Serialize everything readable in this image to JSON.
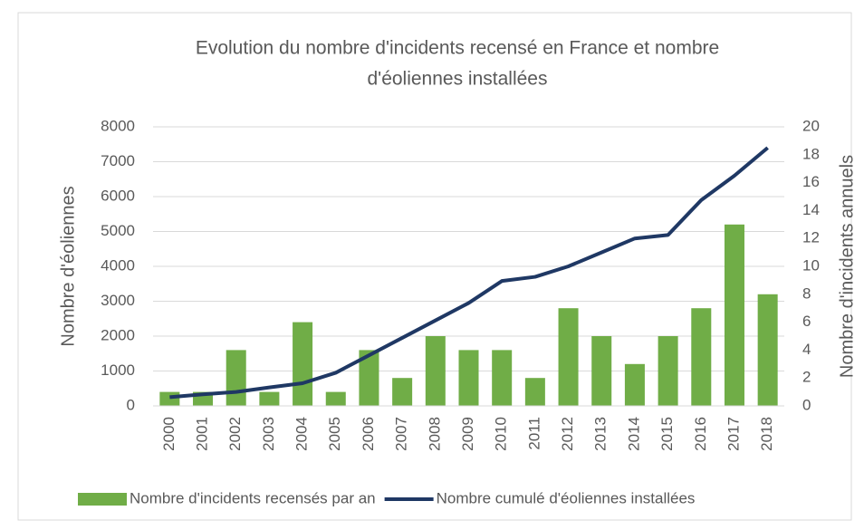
{
  "chart_data": {
    "type": "bar-line",
    "title": [
      "Evolution du nombre d'incidents recensé en France et nombre",
      "d'éoliennes installées"
    ],
    "y_label": "Nombre d'éoliennes",
    "y2_label": "Nombre d'incidents annuels",
    "categories": [
      "2000",
      "2001",
      "2002",
      "2003",
      "2004",
      "2005",
      "2006",
      "2007",
      "2008",
      "2009",
      "2010",
      "2011",
      "2012",
      "2013",
      "2014",
      "2015",
      "2016",
      "2017",
      "2018"
    ],
    "series": [
      {
        "name": "Nombre d'incidents recensés par an",
        "type": "bar",
        "axis": "y2",
        "color": "#70ad47",
        "values": [
          1,
          1,
          4,
          1,
          6,
          1,
          4,
          2,
          5,
          4,
          4,
          2,
          7,
          5,
          3,
          5,
          7,
          13,
          8
        ]
      },
      {
        "name": "Nombre cumulé d'éoliennes installées",
        "type": "line",
        "axis": "y",
        "color": "#1f3864",
        "values": [
          250,
          330,
          400,
          530,
          650,
          950,
          1450,
          1950,
          2450,
          2950,
          3580,
          3700,
          4000,
          4400,
          4800,
          4900,
          5900,
          6600,
          7400
        ]
      }
    ],
    "ylim": [
      0,
      8000
    ],
    "yticks": [
      0,
      1000,
      2000,
      3000,
      4000,
      5000,
      6000,
      7000,
      8000
    ],
    "y2lim": [
      0,
      20
    ],
    "y2ticks": [
      0,
      2,
      4,
      6,
      8,
      10,
      12,
      14,
      16,
      18,
      20
    ],
    "grid": true,
    "legend": "bottom"
  }
}
